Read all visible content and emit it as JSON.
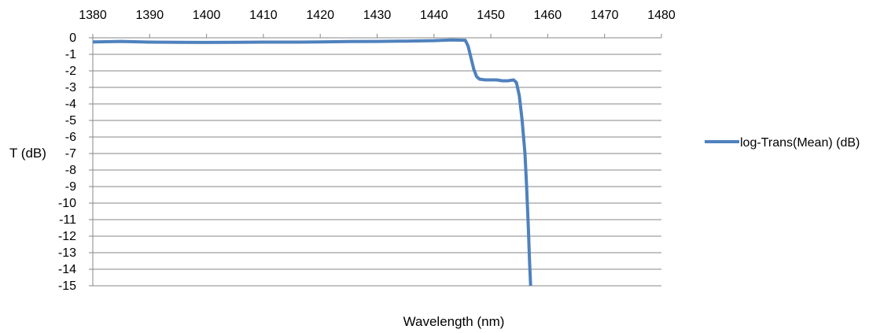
{
  "chart_data": {
    "type": "line",
    "title": "",
    "xlabel": "Wavelength (nm)",
    "ylabel": "T (dB)",
    "xlim": [
      1380,
      1480
    ],
    "ylim": [
      -15,
      0
    ],
    "x_ticks": [
      1380,
      1390,
      1400,
      1410,
      1420,
      1430,
      1440,
      1450,
      1460,
      1470,
      1480
    ],
    "x_tick_labels": [
      "1380",
      "1390",
      "1400",
      "1410",
      "1420",
      "1430",
      "1440",
      "1450",
      "1460",
      "1470",
      "1480"
    ],
    "y_ticks": [
      0,
      -1,
      -2,
      -3,
      -4,
      -5,
      -6,
      -7,
      -8,
      -9,
      -10,
      -11,
      -12,
      -13,
      -14,
      -15
    ],
    "y_tick_labels": [
      "0",
      "-1",
      "-2",
      "-3",
      "-4",
      "-5",
      "-6",
      "-7",
      "-8",
      "-9",
      "-10",
      "-11",
      "-12",
      "-13",
      "-14",
      "-15"
    ],
    "x_axis_position": "top",
    "grid": "horizontal",
    "legend_position": "right",
    "series": [
      {
        "name": "log-Trans(Mean) (dB)",
        "color": "#4F81BD",
        "x": [
          1380,
          1385,
          1390,
          1395,
          1400,
          1405,
          1410,
          1415,
          1420,
          1425,
          1430,
          1435,
          1440,
          1443,
          1445.5,
          1446,
          1446.5,
          1447,
          1447.5,
          1448,
          1449,
          1450,
          1451,
          1452,
          1453,
          1454,
          1454.5,
          1455,
          1455.5,
          1456,
          1456.3,
          1456.6,
          1456.8,
          1457
        ],
        "y": [
          -0.25,
          -0.22,
          -0.26,
          -0.27,
          -0.28,
          -0.27,
          -0.26,
          -0.26,
          -0.25,
          -0.23,
          -0.22,
          -0.2,
          -0.17,
          -0.13,
          -0.15,
          -0.5,
          -1.2,
          -1.9,
          -2.35,
          -2.5,
          -2.55,
          -2.55,
          -2.55,
          -2.6,
          -2.6,
          -2.55,
          -2.7,
          -3.5,
          -5.0,
          -7.0,
          -9.0,
          -11.5,
          -13.5,
          -15
        ]
      }
    ]
  }
}
